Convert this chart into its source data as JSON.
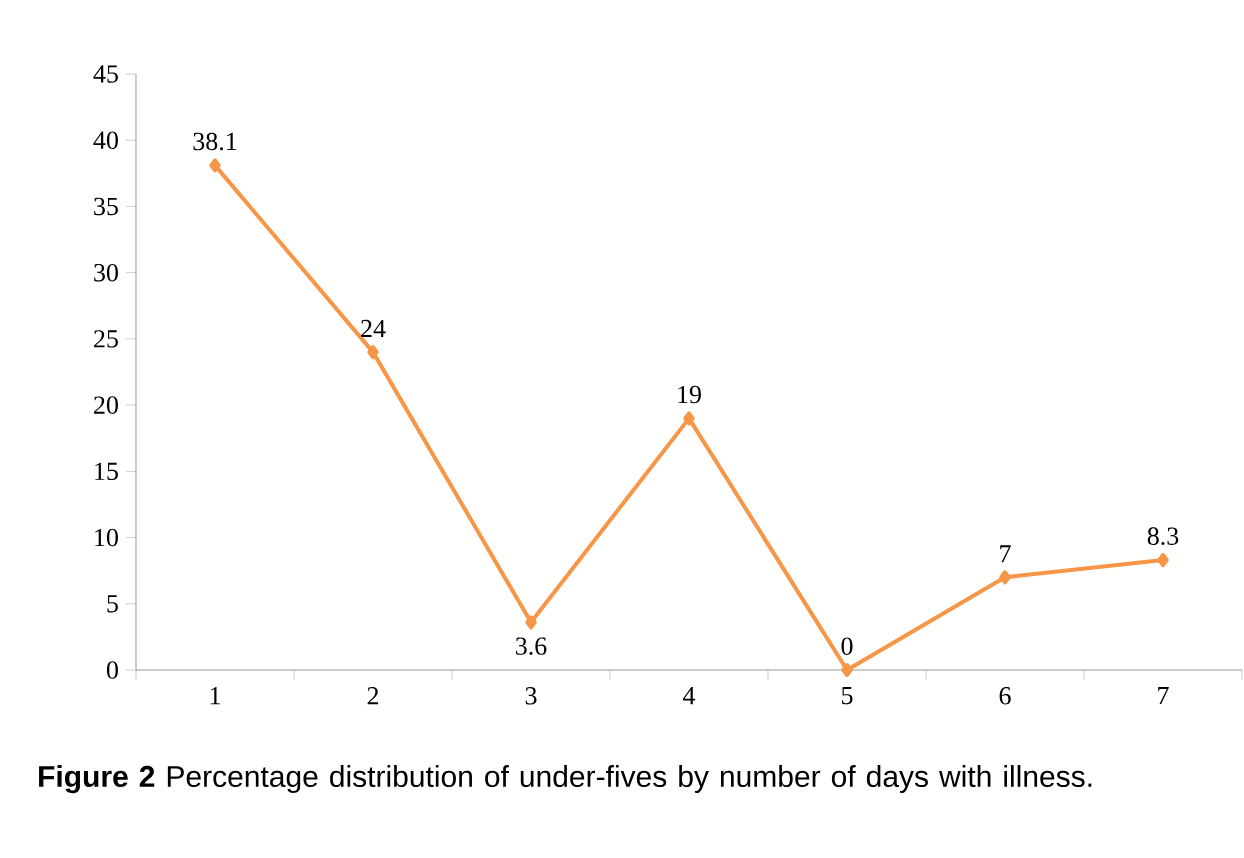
{
  "chart_data": {
    "type": "line",
    "categories": [
      "1",
      "2",
      "3",
      "4",
      "5",
      "6",
      "7"
    ],
    "series": [
      {
        "color": "#f79646",
        "values": [
          38.1,
          24,
          3.6,
          19,
          0,
          7,
          8.3
        ]
      }
    ],
    "ylim": [
      0,
      45
    ],
    "yticks": [
      0,
      5,
      10,
      15,
      20,
      25,
      30,
      35,
      40,
      45
    ],
    "marker": "diamond",
    "data_labels": true,
    "annotations": [
      "**Figure 2** Percentage distribution of under-fives by number of days with illness."
    ]
  }
}
